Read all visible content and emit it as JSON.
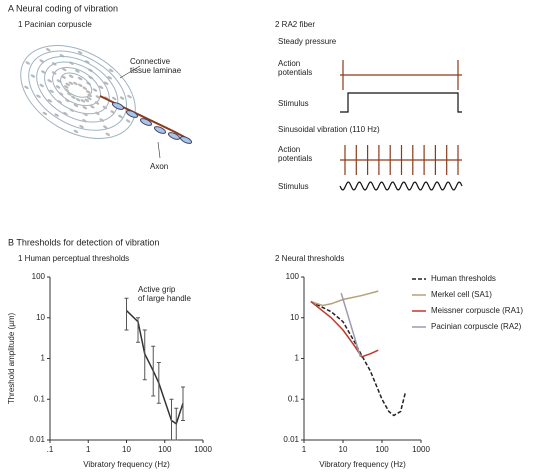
{
  "figure": {
    "panel_a": "A  Neural coding of vibration",
    "a1": "1  Pacinian corpuscle",
    "laminae": [
      "Connective",
      "tissue laminae"
    ],
    "axon": "Axon",
    "a2": "2  RA2 fiber",
    "steady": "Steady pressure",
    "sinus": "Sinusoidal vibration (110 Hz)",
    "ap": [
      "Action",
      "potentials"
    ],
    "stimulus": "Stimulus",
    "panel_b": "B  Thresholds for detection of vibration"
  },
  "chart_data": [
    {
      "type": "line",
      "title": "1  Human perceptual thresholds",
      "xlabel": "Vibratory frequency (Hz)",
      "ylabel": "Threshold amplitude (µm)",
      "annotation": [
        "Active grip",
        "of large handle"
      ],
      "xscale": "log",
      "yscale": "log",
      "xlim": [
        0.1,
        1000
      ],
      "ylim": [
        0.01,
        100
      ],
      "xticks": [
        {
          "value": 0.1,
          "label": ".1"
        },
        1,
        10,
        100,
        1000
      ],
      "yticks": [
        0.01,
        0.1,
        1,
        10,
        100
      ],
      "color": "#333333",
      "x": [
        10,
        20,
        30,
        50,
        70,
        150,
        200,
        300
      ],
      "values": [
        15,
        8,
        1.3,
        0.5,
        0.25,
        0.03,
        0.025,
        0.08
      ],
      "lower": [
        5,
        2.5,
        0.3,
        0.12,
        0.08,
        0.01,
        0.01,
        0.03
      ],
      "upper": [
        30,
        10,
        5,
        2,
        0.8,
        0.1,
        0.06,
        0.2
      ]
    },
    {
      "type": "line",
      "title": "2  Neural thresholds",
      "xlabel": "Vibratory frequency (Hz)",
      "xscale": "log",
      "yscale": "log",
      "xlim": [
        1,
        1000
      ],
      "ylim": [
        0.01,
        100
      ],
      "xticks": [
        1,
        10,
        100,
        1000
      ],
      "yticks": [
        0.01,
        0.1,
        1,
        10,
        100
      ],
      "legend": "upper right",
      "series": [
        {
          "name": "Human thresholds",
          "color": "#222222",
          "style": "dashed",
          "x": [
            1.5,
            5,
            10,
            20,
            30,
            50,
            100,
            150,
            200,
            300,
            400
          ],
          "values": [
            25,
            14,
            8,
            2.5,
            1.2,
            0.5,
            0.1,
            0.05,
            0.04,
            0.05,
            0.15
          ]
        },
        {
          "name": "Merkel cell (SA1)",
          "color": "#b5a07a",
          "style": "solid",
          "x": [
            1.5,
            3,
            5,
            10,
            30,
            80
          ],
          "values": [
            25,
            20,
            22,
            28,
            35,
            45
          ]
        },
        {
          "name": "Meissner corpuscle (RA1)",
          "color": "#c0392b",
          "style": "solid",
          "x": [
            1.5,
            5,
            10,
            20,
            30,
            50,
            80
          ],
          "values": [
            25,
            10,
            5,
            2,
            1.1,
            1.3,
            1.6
          ]
        },
        {
          "name": "Pacinian corpuscle (RA2)",
          "color": "#9a9ab0",
          "style": "solid",
          "x": [
            9,
            28
          ],
          "values": [
            40,
            1.1
          ]
        }
      ]
    }
  ]
}
